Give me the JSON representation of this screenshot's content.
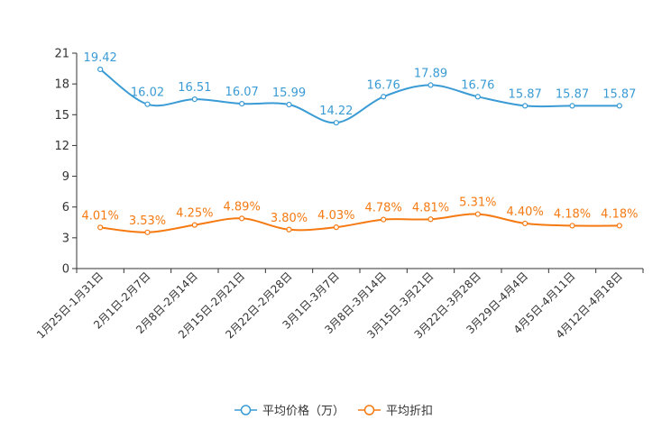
{
  "chart_data": {
    "type": "line",
    "categories": [
      "1月25日-1月31日",
      "2月1日-2月7日",
      "2月8日-2月14日",
      "2月15日-2月21日",
      "2月22日-2月28日",
      "3月1日-3月7日",
      "3月8日-3月14日",
      "3月15日-3月21日",
      "3月22日-3月28日",
      "3月29日-4月4日",
      "4月5日-4月11日",
      "4月12日-4月18日"
    ],
    "series": [
      {
        "name": "平均价格（万）",
        "color": "#3a9bd5",
        "values": [
          19.42,
          16.02,
          16.51,
          16.07,
          15.99,
          14.22,
          16.76,
          17.89,
          16.76,
          15.87,
          15.87,
          15.87
        ],
        "labels": [
          "19.42",
          "16.02",
          "16.51",
          "16.07",
          "15.99",
          "14.22",
          "16.76",
          "17.89",
          "16.76",
          "15.87",
          "15.87",
          "15.87"
        ]
      },
      {
        "name": "平均折扣",
        "color": "#f57a12",
        "values": [
          4.01,
          3.53,
          4.25,
          4.89,
          3.8,
          4.03,
          4.78,
          4.81,
          5.31,
          4.4,
          4.18,
          4.18
        ],
        "labels": [
          "4.01%",
          "3.53%",
          "4.25%",
          "4.89%",
          "3.80%",
          "4.03%",
          "4.78%",
          "4.81%",
          "5.31%",
          "4.40%",
          "4.18%",
          "4.18%"
        ]
      }
    ],
    "yticks": [
      0,
      3,
      6,
      9,
      12,
      15,
      18,
      21
    ],
    "ylim": [
      0,
      21
    ],
    "legend_position": "bottom-center",
    "title": "",
    "xlabel": "",
    "ylabel": ""
  }
}
